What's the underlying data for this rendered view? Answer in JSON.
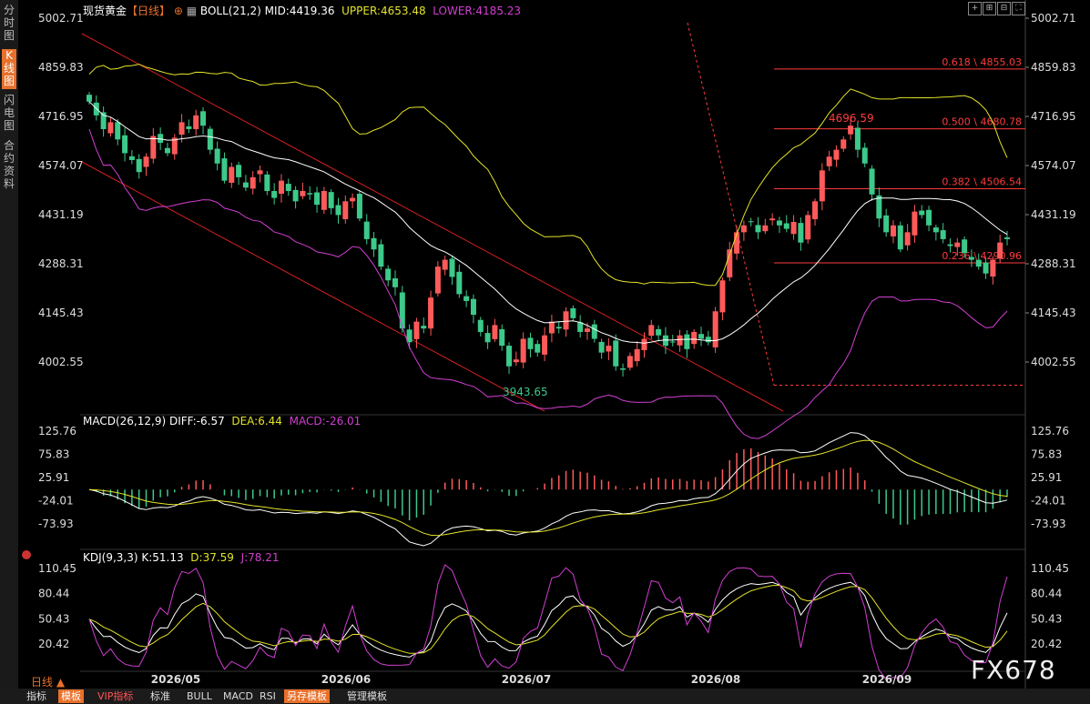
{
  "left_tabs": [
    {
      "label": "分时图",
      "active": false
    },
    {
      "label": "K线图",
      "active": true
    },
    {
      "label": "闪电图",
      "active": false
    },
    {
      "label": "合约资料",
      "active": false
    }
  ],
  "header": {
    "symbol": "现货黄金",
    "period_tag": "【日线】",
    "boll_label": "BOLL(21,2)",
    "mid": "MID:4419.36",
    "upper": "UPPER:4653.48",
    "lower": "LOWER:4185.23"
  },
  "macd_header": {
    "label": "MACD(26,12,9)",
    "diff": "DIFF:-6.57",
    "dea": "DEA:6.44",
    "macd": "MACD:-26.01"
  },
  "kdj_header": {
    "label": "KDJ(9,3,3)",
    "k": "K:51.13",
    "d": "D:37.59",
    "j": "J:78.21"
  },
  "colors": {
    "up": "#ff5a5a",
    "down": "#3cc98a",
    "mid": "#ffffff",
    "upper": "#e3e32a",
    "lower": "#d23fd2",
    "fib": "#ff3b3b",
    "diff": "#ffffff",
    "dea": "#e3e32a",
    "k": "#ffffff",
    "d": "#e3e32a",
    "j": "#d23fd2"
  },
  "chart_data": {
    "type": "candlestick",
    "x_labels": [
      "2026/05",
      "2026/06",
      "2026/07",
      "2026/08",
      "2026/09"
    ],
    "price_axis": {
      "ticks": [
        5002.71,
        4859.83,
        4716.95,
        4574.07,
        4431.19,
        4288.31,
        4145.43,
        4002.55
      ],
      "labels": [
        "5002.71",
        "4859.83",
        "4716.95",
        "4574.07",
        "4431.19",
        "4288.31",
        "4145.43",
        "4002.55"
      ],
      "ylim": [
        3915,
        5002.71
      ]
    },
    "annotations": {
      "low_label": "3943.65",
      "high_label": "4696.59"
    },
    "fib_levels": [
      {
        "label": "0.618 \\ 4855.03",
        "value": 4855.03
      },
      {
        "label": "0.500 \\ 4680.78",
        "value": 4680.78
      },
      {
        "label": "0.382 \\ 4506.54",
        "value": 4506.54
      },
      {
        "label": "0.236 \\ 4290.96",
        "value": 4290.96
      }
    ],
    "fib_base": 3935,
    "closes": [
      4760,
      4720,
      4680,
      4700,
      4650,
      4610,
      4590,
      4555,
      4600,
      4660,
      4640,
      4610,
      4655,
      4700,
      4680,
      4720,
      4690,
      4620,
      4580,
      4530,
      4570,
      4540,
      4510,
      4540,
      4560,
      4500,
      4480,
      4530,
      4500,
      4470,
      4500,
      4490,
      4460,
      4500,
      4450,
      4430,
      4470,
      4480,
      4420,
      4360,
      4330,
      4280,
      4240,
      4220,
      4100,
      4060,
      4120,
      4100,
      4190,
      4280,
      4300,
      4250,
      4200,
      4180,
      4140,
      4090,
      4060,
      4110,
      4050,
      3990,
      4010,
      4070,
      4040,
      4030,
      4080,
      4120,
      4100,
      4150,
      4130,
      4090,
      4100,
      4070,
      4030,
      4050,
      3990,
      3980,
      4020,
      4040,
      4070,
      4110,
      4080,
      4050,
      4060,
      4080,
      4040,
      4090,
      4070,
      4060,
      4150,
      4240,
      4330,
      4380,
      4400,
      4410,
      4380,
      4400,
      4420,
      4400,
      4390,
      4410,
      4350,
      4430,
      4470,
      4560,
      4600,
      4620,
      4650,
      4690,
      4620,
      4580,
      4490,
      4420,
      4380,
      4400,
      4330,
      4380,
      4440,
      4430,
      4400,
      4380,
      4360,
      4340,
      4350,
      4320,
      4300,
      4280,
      4260,
      4300,
      4350,
      4360
    ],
    "macd": {
      "ticks": [
        125.76,
        75.83,
        25.91,
        -24.01,
        -73.93
      ],
      "labels": [
        "125.76",
        "75.83",
        "25.91",
        "-24.01",
        "-73.93"
      ],
      "ylim": [
        -100,
        140
      ]
    },
    "kdj": {
      "ticks": [
        110.45,
        80.44,
        50.43,
        20.42
      ],
      "labels": [
        "110.45",
        "80.44",
        "50.43",
        "20.42"
      ],
      "ylim": [
        0,
        125
      ]
    }
  },
  "bottom": {
    "period": "日线 ▲",
    "buttons": [
      "指标",
      "模板",
      "VIP指标",
      "标准",
      "BULL",
      "MACD",
      "RSI",
      "另存模板",
      "管理模板"
    ]
  },
  "watermark": "FX678"
}
